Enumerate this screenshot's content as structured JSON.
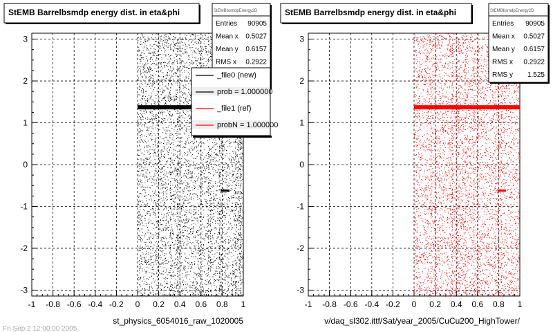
{
  "chart_data": [
    {
      "type": "scatter",
      "title": "StEMB Barrelbsmdp energy dist. in eta&phi",
      "xlabel": "st_physics_6054016_raw_1020005",
      "ylabel": "",
      "xlim": [
        -1,
        1
      ],
      "ylim": [
        -3.1416,
        3.1416
      ],
      "x_ticks": [
        "-1",
        "-0.8",
        "-0.6",
        "-0.4",
        "-0.2",
        "0",
        "0.2",
        "0.4",
        "0.6",
        "0.8",
        "1"
      ],
      "y_ticks": [
        "-3",
        "-2",
        "-1",
        "0",
        "1",
        "2",
        "3"
      ],
      "grid": true,
      "marker_color": "#000000",
      "occupied_x_range": [
        0,
        1
      ],
      "band": {
        "y": 1.37,
        "x_range": [
          0,
          1
        ]
      },
      "spot": {
        "x": 0.83,
        "y": -0.62
      },
      "stats": {
        "header": "StEMBbsmdpEnergy2D",
        "rows": [
          {
            "label": "Entries",
            "value": "90905"
          },
          {
            "label": "Mean x",
            "value": "0.5027"
          },
          {
            "label": "Mean y",
            "value": "0.6157"
          },
          {
            "label": "RMS x",
            "value": "0.2922"
          }
        ]
      },
      "legend": {
        "entries": [
          {
            "label": "_file0 (new)",
            "color": "#000000"
          },
          {
            "label": "prob = 1.000000",
            "color": "#000000"
          },
          {
            "label": "_file1 (ref)",
            "color": "#ff0000"
          },
          {
            "label": "probN = 1.000000",
            "color": "#ff0000"
          }
        ]
      }
    },
    {
      "type": "scatter",
      "title": "StEMB Barrelbsmdp energy dist. in eta&phi",
      "xlabel": "v/daq_sl302.ittf/Sat/year_2005/CuCu200_HighTower/",
      "ylabel": "",
      "xlim": [
        -1,
        1
      ],
      "ylim": [
        -3.1416,
        3.1416
      ],
      "x_ticks": [
        "-1",
        "-0.8",
        "-0.6",
        "-0.4",
        "-0.2",
        "0",
        "0.2",
        "0.4",
        "0.6",
        "0.8",
        "1"
      ],
      "y_ticks": [
        "-3",
        "-2",
        "-1",
        "0",
        "1",
        "2",
        "3"
      ],
      "grid": true,
      "marker_color": "#ff0000",
      "occupied_x_range": [
        0,
        1
      ],
      "band": {
        "y": 1.37,
        "x_range": [
          0,
          1
        ]
      },
      "spot": {
        "x": 0.83,
        "y": -0.62
      },
      "stats": {
        "header": "StEMBbsmdpEnergy2D",
        "rows": [
          {
            "label": "Entries",
            "value": "90905"
          },
          {
            "label": "Mean x",
            "value": "0.5027"
          },
          {
            "label": "Mean y",
            "value": "0.6157"
          },
          {
            "label": "RMS x",
            "value": "0.2922"
          },
          {
            "label": "RMS y",
            "value": "1.525"
          }
        ]
      }
    }
  ],
  "footer_text": "Fri Sep 2 12:00:00 2005"
}
